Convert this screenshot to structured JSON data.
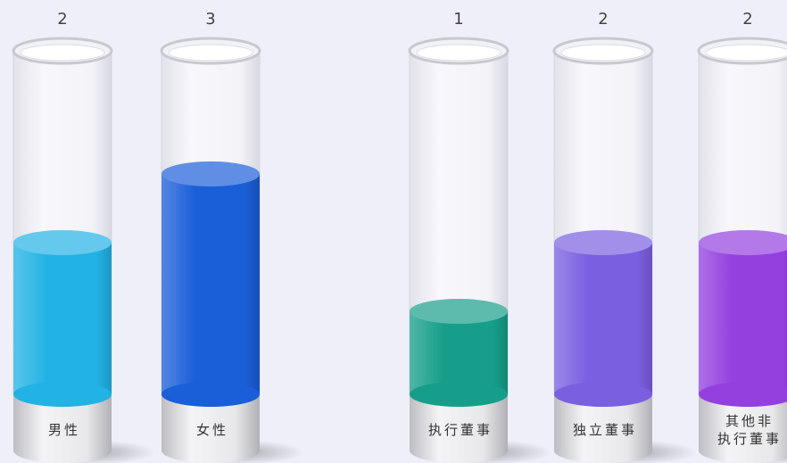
{
  "chart_data": [
    {
      "type": "bar",
      "categories": [
        "男性",
        "女性"
      ],
      "values": [
        2,
        3
      ],
      "colors": [
        "#22b2e4",
        "#1a5ed8"
      ],
      "ylim": [
        0,
        5
      ]
    },
    {
      "type": "bar",
      "categories": [
        "执行董事",
        "独立董事",
        "其他非\n执行董事"
      ],
      "values": [
        1,
        2,
        2
      ],
      "colors": [
        "#169e8a",
        "#7a5fe0",
        "#9440df"
      ],
      "ylim": [
        0,
        5
      ]
    }
  ]
}
